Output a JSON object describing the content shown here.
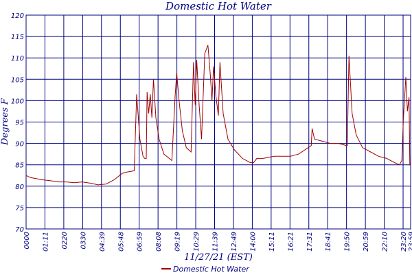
{
  "chart_data": {
    "type": "line",
    "title": "Domestic Hot Water",
    "xlabel": "11/27/21 (EST)",
    "ylabel": "Degrees F",
    "ylim": [
      70,
      120
    ],
    "yticks": [
      70,
      75,
      80,
      85,
      90,
      95,
      100,
      105,
      110,
      115,
      120
    ],
    "xtick_labels": [
      "0000",
      "01:11",
      "0220",
      "0330",
      "04:39",
      "05:48",
      "06:59",
      "08:08",
      "09:19",
      "10:29",
      "11:39",
      "12:49",
      "14:00",
      "15:11",
      "16:21",
      "17:31",
      "18:41",
      "19:50",
      "20:59",
      "22:10",
      "23:20",
      "23:59"
    ],
    "grid": true,
    "legend_position": "bottom-center",
    "colors": {
      "series": "#a00000",
      "grid": "#000080",
      "text": "#000080"
    },
    "series": [
      {
        "name": "Domestic Hot Water",
        "x": [
          0,
          0.3,
          0.6,
          1.0,
          1.5,
          2.0,
          2.5,
          3.0,
          3.5,
          4.0,
          4.5,
          5.0,
          5.5,
          6.0,
          6.3,
          6.6,
          6.75,
          6.9,
          7.1,
          7.3,
          7.4,
          7.5,
          7.55,
          7.65,
          7.75,
          7.85,
          7.95,
          8.1,
          8.3,
          8.6,
          9.1,
          9.3,
          9.4,
          9.55,
          9.75,
          10.0,
          10.3,
          10.45,
          10.55,
          10.65,
          10.8,
          10.95,
          11.15,
          11.35,
          11.5,
          11.6,
          11.7,
          11.85,
          12.0,
          12.1,
          12.3,
          12.6,
          13.0,
          13.5,
          14.0,
          14.2,
          14.4,
          14.8,
          15.5,
          16.0,
          16.5,
          17.0,
          17.6,
          17.8,
          17.85,
          18.0,
          18.5,
          19.0,
          19.5,
          20.0,
          20.05,
          20.15,
          20.35,
          20.6,
          21.0,
          21.5,
          22.0,
          22.5,
          23.0,
          23.3,
          23.45,
          23.55,
          23.7,
          23.8,
          23.9,
          23.95,
          24.0
        ],
        "values": [
          82.5,
          82,
          81.8,
          81.5,
          81.3,
          81,
          81,
          80.8,
          81,
          80.7,
          80.3,
          80.5,
          81.5,
          83,
          83.3,
          83.5,
          83.6,
          101.5,
          91,
          87,
          86.5,
          86.5,
          102,
          97,
          101.5,
          96,
          105,
          96,
          91,
          87.5,
          86,
          101,
          106.5,
          100,
          93,
          89,
          88,
          109,
          99,
          109.5,
          99,
          91,
          111,
          113,
          106,
          100,
          108,
          101,
          96.5,
          109,
          97,
          91,
          88.5,
          86.5,
          85.5,
          85.5,
          86.5,
          86.5,
          87,
          87,
          87,
          87.5,
          89,
          89.5,
          93.5,
          91,
          90.5,
          90,
          90,
          89.5,
          89.5,
          110.5,
          97,
          92,
          89,
          88,
          87,
          86.5,
          85.5,
          85,
          86,
          96,
          105.5,
          97.5,
          100.8,
          85,
          85
        ]
      }
    ]
  }
}
